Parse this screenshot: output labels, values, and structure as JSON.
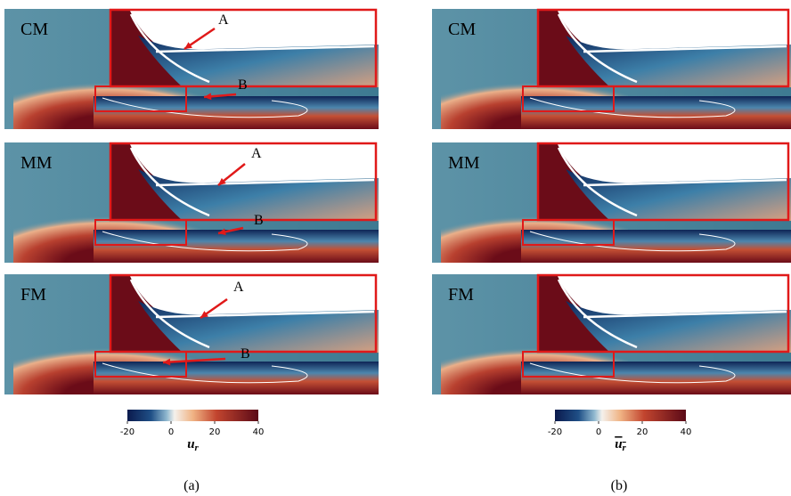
{
  "panels": [
    {
      "label": "(a)",
      "rows": [
        {
          "label": "CM",
          "annotations": [
            "A",
            "B"
          ]
        },
        {
          "label": "MM",
          "annotations": [
            "A",
            "B"
          ]
        },
        {
          "label": "FM",
          "annotations": [
            "A",
            "B"
          ]
        }
      ],
      "colorbar": {
        "range": [
          -20,
          40
        ],
        "ticks": [
          -20,
          0,
          20,
          40
        ],
        "symbol": "u",
        "subscript": "r",
        "overline": false
      }
    },
    {
      "label": "(b)",
      "rows": [
        {
          "label": "CM"
        },
        {
          "label": "MM"
        },
        {
          "label": "FM"
        }
      ],
      "colorbar": {
        "range": [
          -20,
          40
        ],
        "ticks": [
          -20,
          0,
          20,
          40
        ],
        "symbol": "u",
        "subscript": "r",
        "overline": true
      }
    }
  ]
}
